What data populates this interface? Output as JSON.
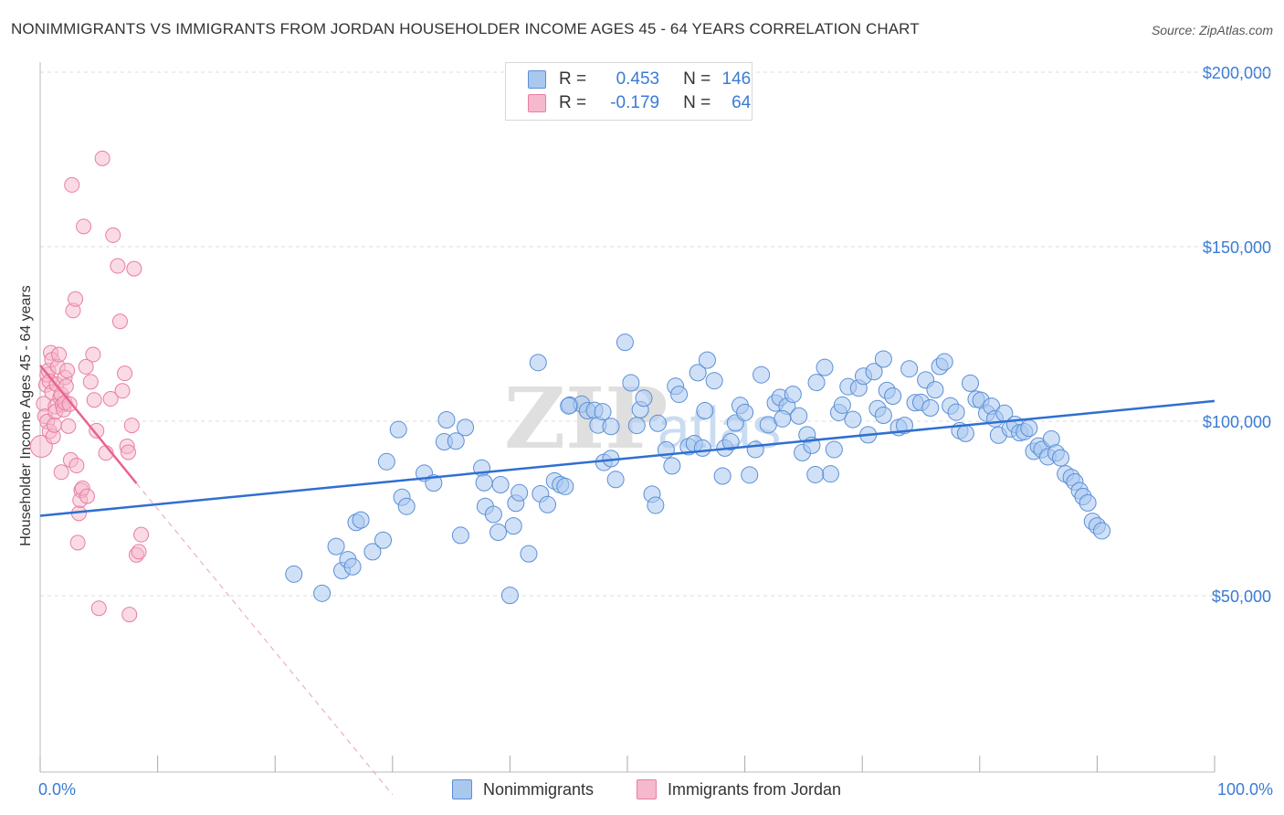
{
  "header": {
    "title": "NONIMMIGRANTS VS IMMIGRANTS FROM JORDAN HOUSEHOLDER INCOME AGES 45 - 64 YEARS CORRELATION CHART",
    "source_prefix": "Source: ",
    "source_name": "ZipAtlas.com"
  },
  "legend": {
    "r_label": "R =",
    "n_label": "N =",
    "rows": [
      {
        "r": "0.453",
        "n": "146"
      },
      {
        "r": "-0.179",
        "n": "64"
      }
    ]
  },
  "colors": {
    "blue_fill": "#a9c8f0",
    "blue_stroke": "#5b8fd6",
    "blue_line": "#2f6fd0",
    "pink_fill": "#f6b8cc",
    "pink_stroke": "#e87ea0",
    "pink_line": "#e8638d",
    "tick_text": "#3a7bd5",
    "grid": "#dddddd"
  },
  "watermark": {
    "zip": "ZIP",
    "atlas": "atlas"
  },
  "chart_data": {
    "type": "scatter",
    "title": "NONIMMIGRANTS VS IMMIGRANTS FROM JORDAN HOUSEHOLDER INCOME AGES 45 - 64 YEARS CORRELATION CHART",
    "xlabel": "",
    "ylabel": "Householder Income Ages 45 - 64 years",
    "xlim": [
      0,
      100
    ],
    "ylim": [
      0,
      210000
    ],
    "x_tick_labels": [
      "0.0%",
      "100.0%"
    ],
    "y_ticks": [
      50000,
      100000,
      150000,
      200000
    ],
    "y_tick_labels": [
      "$50,000",
      "$100,000",
      "$150,000",
      "$200,000"
    ],
    "grid": true,
    "legend_position": "top-center",
    "series": [
      {
        "name": "Nonimmigrants",
        "r": 0.453,
        "n": 146,
        "trend": {
          "x": [
            0,
            100
          ],
          "y": [
            72900,
            105800
          ]
        },
        "points": [
          [
            21.6,
            56200
          ],
          [
            24.0,
            50700
          ],
          [
            25.2,
            64100
          ],
          [
            25.7,
            57200
          ],
          [
            26.2,
            60300
          ],
          [
            26.6,
            58300
          ],
          [
            26.9,
            71000
          ],
          [
            27.3,
            71700
          ],
          [
            28.3,
            62600
          ],
          [
            29.2,
            65900
          ],
          [
            29.5,
            88400
          ],
          [
            30.5,
            97600
          ],
          [
            30.8,
            78200
          ],
          [
            31.2,
            75600
          ],
          [
            32.7,
            85100
          ],
          [
            33.5,
            82300
          ],
          [
            34.4,
            94100
          ],
          [
            34.6,
            100400
          ],
          [
            35.4,
            94300
          ],
          [
            35.8,
            67300
          ],
          [
            36.2,
            98200
          ],
          [
            37.6,
            86600
          ],
          [
            37.8,
            82400
          ],
          [
            37.9,
            75600
          ],
          [
            38.6,
            73300
          ],
          [
            39.0,
            68200
          ],
          [
            39.2,
            81800
          ],
          [
            40.0,
            50100
          ],
          [
            40.3,
            70000
          ],
          [
            40.5,
            76500
          ],
          [
            40.8,
            79500
          ],
          [
            41.6,
            62000
          ],
          [
            42.4,
            116800
          ],
          [
            42.6,
            79200
          ],
          [
            43.2,
            76100
          ],
          [
            43.8,
            82900
          ],
          [
            44.3,
            81800
          ],
          [
            44.7,
            81300
          ],
          [
            45.1,
            104600
          ],
          [
            46.1,
            104900
          ],
          [
            46.6,
            103000
          ],
          [
            47.2,
            103100
          ],
          [
            47.5,
            98900
          ],
          [
            47.9,
            102700
          ],
          [
            48.0,
            88200
          ],
          [
            48.6,
            89300
          ],
          [
            49.0,
            83300
          ],
          [
            49.8,
            122600
          ],
          [
            50.3,
            111000
          ],
          [
            50.8,
            98800
          ],
          [
            51.1,
            103300
          ],
          [
            51.4,
            106600
          ],
          [
            52.1,
            79100
          ],
          [
            52.4,
            75900
          ],
          [
            52.6,
            99400
          ],
          [
            53.3,
            91800
          ],
          [
            53.8,
            87200
          ],
          [
            54.1,
            110000
          ],
          [
            54.4,
            107700
          ],
          [
            55.2,
            92700
          ],
          [
            55.7,
            93600
          ],
          [
            56.0,
            113900
          ],
          [
            56.6,
            103000
          ],
          [
            56.8,
            117500
          ],
          [
            57.4,
            111600
          ],
          [
            58.1,
            84300
          ],
          [
            58.3,
            92300
          ],
          [
            58.8,
            94100
          ],
          [
            59.2,
            99500
          ],
          [
            59.6,
            104500
          ],
          [
            60.0,
            102500
          ],
          [
            60.4,
            84600
          ],
          [
            60.9,
            91900
          ],
          [
            61.4,
            113300
          ],
          [
            62.0,
            99000
          ],
          [
            62.6,
            105200
          ],
          [
            63.0,
            106800
          ],
          [
            63.6,
            104300
          ],
          [
            64.1,
            107700
          ],
          [
            64.6,
            101500
          ],
          [
            64.9,
            91000
          ],
          [
            65.3,
            96100
          ],
          [
            65.7,
            93100
          ],
          [
            66.1,
            111100
          ],
          [
            66.8,
            115400
          ],
          [
            67.3,
            84900
          ],
          [
            67.6,
            91900
          ],
          [
            68.0,
            102500
          ],
          [
            68.3,
            104600
          ],
          [
            68.8,
            109900
          ],
          [
            69.2,
            100500
          ],
          [
            69.7,
            109500
          ],
          [
            70.1,
            112900
          ],
          [
            70.5,
            96100
          ],
          [
            71.0,
            114200
          ],
          [
            71.3,
            103600
          ],
          [
            71.8,
            117800
          ],
          [
            72.1,
            108800
          ],
          [
            72.6,
            107200
          ],
          [
            73.1,
            98200
          ],
          [
            73.6,
            98800
          ],
          [
            74.0,
            115000
          ],
          [
            74.5,
            105300
          ],
          [
            75.0,
            105400
          ],
          [
            75.4,
            111800
          ],
          [
            75.8,
            103800
          ],
          [
            76.2,
            109000
          ],
          [
            76.6,
            115700
          ],
          [
            77.0,
            117000
          ],
          [
            77.5,
            104400
          ],
          [
            78.0,
            102600
          ],
          [
            78.3,
            97300
          ],
          [
            78.8,
            96500
          ],
          [
            79.2,
            110900
          ],
          [
            79.7,
            106300
          ],
          [
            80.1,
            106000
          ],
          [
            80.6,
            102300
          ],
          [
            81.0,
            104300
          ],
          [
            81.3,
            100700
          ],
          [
            81.6,
            96000
          ],
          [
            82.1,
            102300
          ],
          [
            82.6,
            97800
          ],
          [
            83.0,
            99100
          ],
          [
            83.4,
            96700
          ],
          [
            83.8,
            97000
          ],
          [
            84.2,
            98000
          ],
          [
            84.6,
            91400
          ],
          [
            85.0,
            92900
          ],
          [
            85.3,
            91900
          ],
          [
            85.8,
            89800
          ],
          [
            86.1,
            94900
          ],
          [
            86.5,
            90900
          ],
          [
            86.9,
            89500
          ],
          [
            87.3,
            84900
          ],
          [
            87.8,
            83900
          ],
          [
            88.1,
            82600
          ],
          [
            88.5,
            80100
          ],
          [
            88.8,
            78400
          ],
          [
            89.2,
            76600
          ],
          [
            89.6,
            71300
          ],
          [
            90.0,
            70000
          ],
          [
            90.4,
            68600
          ],
          [
            45.0,
            104400
          ],
          [
            48.6,
            98500
          ],
          [
            66.0,
            84700
          ],
          [
            63.2,
            100700
          ],
          [
            56.4,
            92300
          ],
          [
            71.8,
            101700
          ]
        ]
      },
      {
        "name": "Immigrants from Jordan",
        "r": -0.179,
        "n": 64,
        "trend_solid": {
          "x": [
            0,
            8.2
          ],
          "y": [
            116000,
            82200
          ]
        },
        "trend_dashed": {
          "x": [
            8.2,
            30.0
          ],
          "y": [
            82200,
            -7000
          ]
        },
        "points": [
          [
            0.1,
            92800
          ],
          [
            0.3,
            105000
          ],
          [
            0.4,
            101400
          ],
          [
            0.6,
            99900
          ],
          [
            0.5,
            110400
          ],
          [
            0.6,
            113300
          ],
          [
            0.7,
            114500
          ],
          [
            0.8,
            97100
          ],
          [
            0.8,
            111400
          ],
          [
            0.9,
            119600
          ],
          [
            1.0,
            117600
          ],
          [
            1.0,
            108300
          ],
          [
            1.1,
            95600
          ],
          [
            1.2,
            98900
          ],
          [
            1.3,
            104200
          ],
          [
            1.3,
            102700
          ],
          [
            1.4,
            110600
          ],
          [
            1.5,
            115600
          ],
          [
            1.6,
            119100
          ],
          [
            1.7,
            106800
          ],
          [
            1.8,
            85400
          ],
          [
            1.8,
            107700
          ],
          [
            1.9,
            104700
          ],
          [
            2.0,
            103300
          ],
          [
            2.1,
            112500
          ],
          [
            2.1,
            105300
          ],
          [
            2.2,
            110000
          ],
          [
            2.3,
            114500
          ],
          [
            2.4,
            98600
          ],
          [
            2.5,
            104900
          ],
          [
            2.6,
            88900
          ],
          [
            2.7,
            167700
          ],
          [
            2.8,
            131700
          ],
          [
            3.0,
            135000
          ],
          [
            3.1,
            87300
          ],
          [
            3.2,
            65200
          ],
          [
            3.3,
            73600
          ],
          [
            3.4,
            77400
          ],
          [
            3.5,
            80200
          ],
          [
            3.6,
            80800
          ],
          [
            3.7,
            155800
          ],
          [
            3.9,
            115600
          ],
          [
            4.0,
            78500
          ],
          [
            4.3,
            111300
          ],
          [
            4.5,
            119100
          ],
          [
            4.6,
            106100
          ],
          [
            4.8,
            97300
          ],
          [
            5.0,
            46400
          ],
          [
            5.3,
            175300
          ],
          [
            5.6,
            90900
          ],
          [
            6.0,
            106400
          ],
          [
            6.2,
            153300
          ],
          [
            6.6,
            144500
          ],
          [
            6.8,
            128600
          ],
          [
            7.0,
            108700
          ],
          [
            7.2,
            113700
          ],
          [
            7.4,
            92800
          ],
          [
            7.5,
            91100
          ],
          [
            7.6,
            44600
          ],
          [
            7.8,
            98800
          ],
          [
            8.0,
            143700
          ],
          [
            8.2,
            61700
          ],
          [
            8.4,
            62600
          ],
          [
            8.6,
            67500
          ]
        ]
      }
    ]
  }
}
